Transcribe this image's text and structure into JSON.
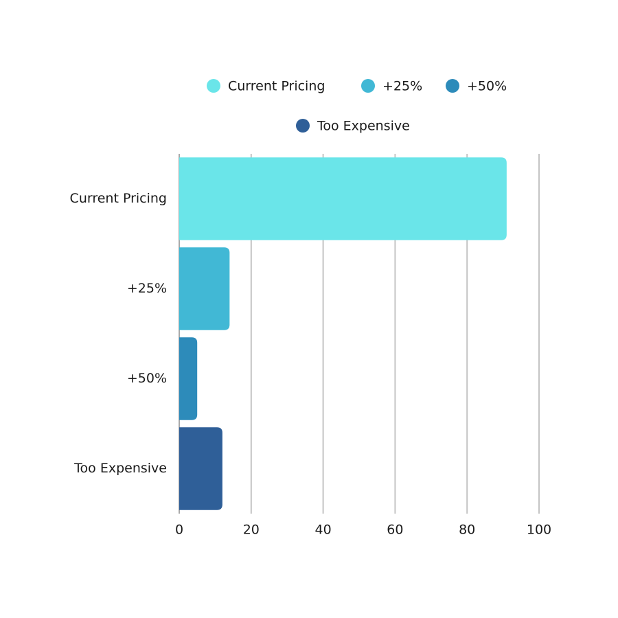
{
  "chart_data": {
    "type": "bar",
    "orientation": "horizontal",
    "categories": [
      "Current Pricing",
      "+25%",
      "+50%",
      "Too Expensive"
    ],
    "values": [
      91,
      14,
      5,
      12
    ],
    "colors": [
      "#6ae5e9",
      "#41b8d5",
      "#2d8bba",
      "#2f5f98"
    ],
    "xlim": [
      0,
      100
    ],
    "xticks": [
      0,
      20,
      40,
      60,
      80,
      100
    ],
    "grid": true,
    "legend": "top"
  }
}
